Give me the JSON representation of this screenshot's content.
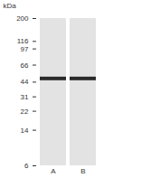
{
  "chart_data": {
    "type": "blot",
    "y_label": "kDa",
    "categories": [
      "A",
      "B"
    ],
    "values": [
      48,
      48
    ],
    "ylim": [
      6,
      200
    ],
    "yticks": [
      6,
      14,
      22,
      31,
      44,
      66,
      97,
      116,
      200
    ],
    "log": "y",
    "color": "#2a2a2a"
  }
}
